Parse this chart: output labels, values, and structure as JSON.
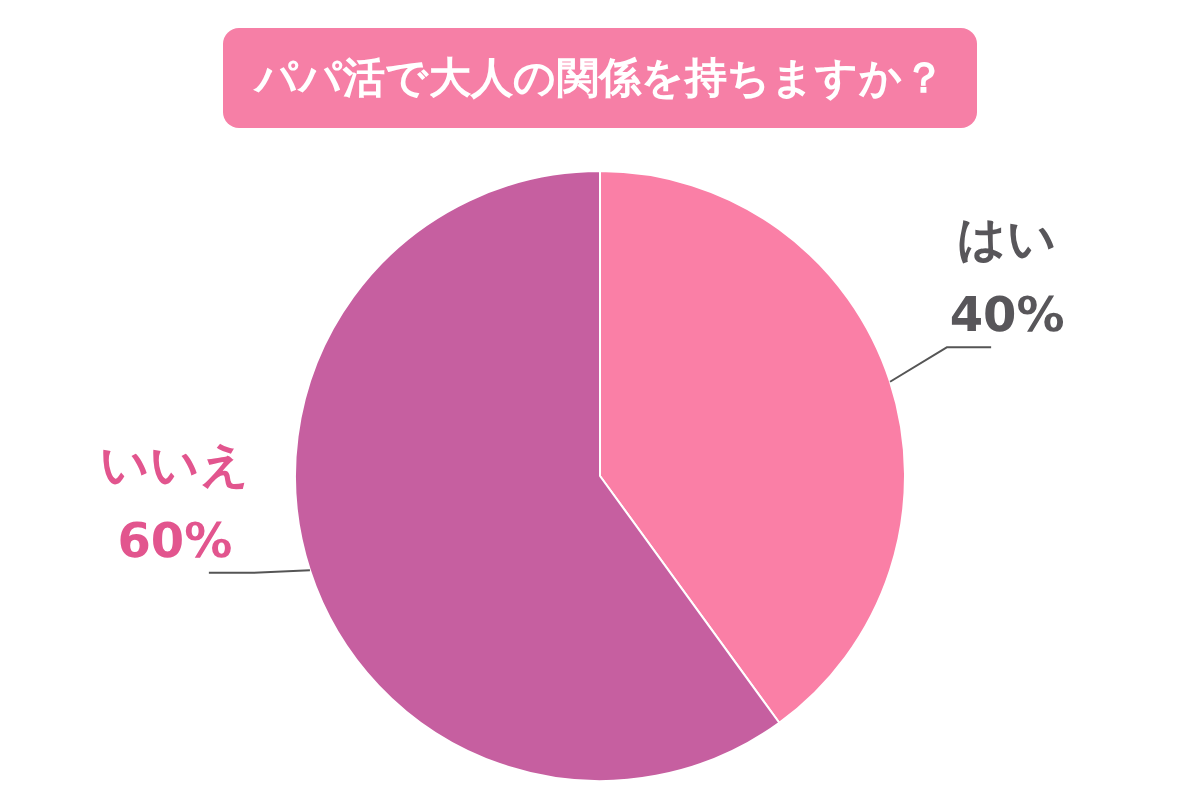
{
  "chart_data": {
    "type": "pie",
    "title": "パパ活で大人の関係を持ちますか？",
    "categories": [
      "はい",
      "いいえ"
    ],
    "values": [
      40,
      60
    ],
    "colors": [
      "#fa7fa6",
      "#c65fa0"
    ],
    "value_labels": [
      "40%",
      "60%"
    ]
  }
}
